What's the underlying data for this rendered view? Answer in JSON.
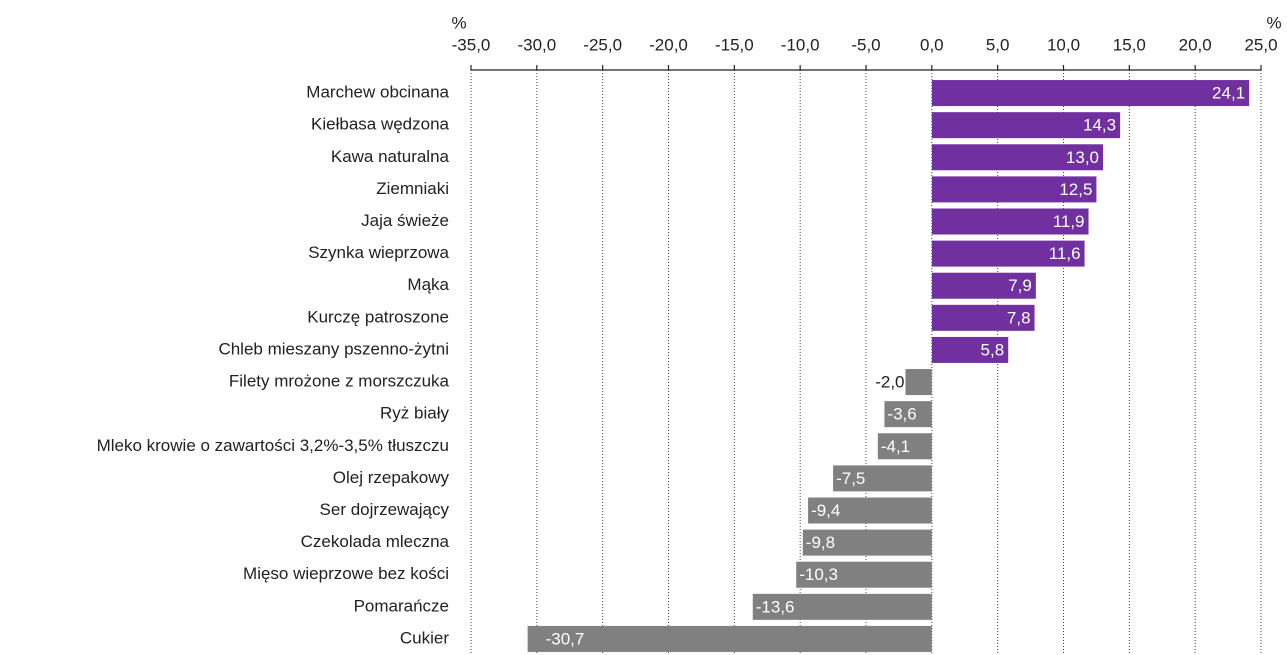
{
  "chart_data": {
    "type": "hbar",
    "axis_unit": "%",
    "categories": [
      "Marchew obcinana",
      "Kiełbasa wędzona",
      "Kawa naturalna",
      "Ziemniaki",
      "Jaja świeże",
      "Szynka wieprzowa",
      "Mąka",
      "Kurczę patroszone",
      "Chleb mieszany pszenno-żytni",
      "Filety mrożone z morszczuka",
      "Ryż biały",
      "Mleko krowie o zawartości 3,2%-3,5% tłuszczu",
      "Olej rzepakowy",
      "Ser dojrzewający",
      "Czekolada mleczna",
      "Mięso wieprzowe bez kości",
      "Pomarańcze",
      "Cukier"
    ],
    "values": [
      24.1,
      14.3,
      13.0,
      12.5,
      11.9,
      11.6,
      7.9,
      7.8,
      5.8,
      -2.0,
      -3.6,
      -4.1,
      -7.5,
      -9.4,
      -9.8,
      -10.3,
      -13.6,
      -30.7
    ],
    "value_labels": [
      "24,1",
      "14,3",
      "13,0",
      "12,5",
      "11,9",
      "11,6",
      "7,9",
      "7,8",
      "5,8",
      "-2,0",
      "-3,6",
      "-4,1",
      "-7,5",
      "-9,4",
      "-9,8",
      "-10,3",
      "-13,6",
      "-30,7"
    ],
    "positive_color": "#7030a0",
    "negative_color": "#808080",
    "xlim": [
      -35,
      25
    ],
    "xticks": [
      {
        "value": -35,
        "label": "-35,0"
      },
      {
        "value": -30,
        "label": "-30,0"
      },
      {
        "value": -25,
        "label": "-25,0"
      },
      {
        "value": -20,
        "label": "-20,0"
      },
      {
        "value": -15,
        "label": "-15,0"
      },
      {
        "value": -10,
        "label": "-10,0"
      },
      {
        "value": -5,
        "label": "-5,0"
      },
      {
        "value": 0,
        "label": "0,0"
      },
      {
        "value": 5,
        "label": "5,0"
      },
      {
        "value": 10,
        "label": "10,0"
      },
      {
        "value": 15,
        "label": "15,0"
      },
      {
        "value": 20,
        "label": "20,0"
      },
      {
        "value": 25,
        "label": "25,0"
      }
    ],
    "grid": true
  }
}
